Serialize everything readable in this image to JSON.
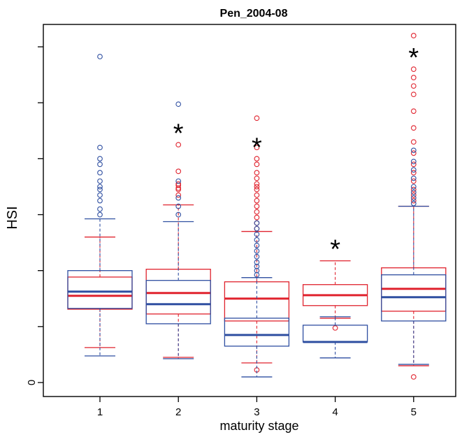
{
  "chart_data": {
    "type": "box",
    "title": "Pen_2004-08",
    "xlabel": "maturity stage",
    "ylabel": "HSI",
    "categories": [
      "1",
      "2",
      "3",
      "4",
      "5"
    ],
    "y_tick_labels": [
      "0"
    ],
    "ylim": [
      -0.5,
      12.8
    ],
    "y_ticks": [
      0,
      2,
      4,
      6,
      8,
      10,
      12
    ],
    "significance_marker": "*",
    "significance_marks": [
      false,
      true,
      true,
      true,
      true
    ],
    "colors": {
      "red": "#e0232e",
      "blue": "#2f4fa1"
    },
    "series": [
      {
        "color": "red",
        "boxes": [
          {
            "category": "1",
            "whisker_low": 1.25,
            "q1": 2.62,
            "median": 3.1,
            "q3": 3.77,
            "whisker_high": 5.2,
            "outliers": []
          },
          {
            "category": "2",
            "whisker_low": 0.9,
            "q1": 2.45,
            "median": 3.2,
            "q3": 4.05,
            "whisker_high": 6.35,
            "outliers": [
              6.7,
              6.9,
              6.95,
              7.05,
              7.1,
              7.55,
              8.5
            ]
          },
          {
            "category": "3",
            "whisker_low": 0.7,
            "q1": 2.2,
            "median": 3.0,
            "q3": 3.6,
            "whisker_high": 5.4,
            "outliers": [
              0.45,
              5.5,
              5.7,
              5.9,
              6.1,
              6.3,
              6.5,
              6.7,
              6.9,
              7.0,
              7.1,
              7.3,
              7.5,
              7.8,
              8.0,
              8.4,
              9.45
            ]
          },
          {
            "category": "4",
            "whisker_low": 2.3,
            "q1": 2.75,
            "median": 3.12,
            "q3": 3.5,
            "whisker_high": 4.35,
            "outliers": [
              1.95
            ]
          },
          {
            "category": "5",
            "whisker_low": 0.6,
            "q1": 2.55,
            "median": 3.35,
            "q3": 4.1,
            "whisker_high": 6.3,
            "outliers": [
              0.2,
              6.5,
              6.7,
              6.9,
              7.2,
              7.5,
              7.8,
              8.2,
              8.6,
              9.1,
              9.7,
              10.3,
              10.6,
              10.9,
              11.2,
              12.4
            ]
          }
        ]
      },
      {
        "color": "blue",
        "boxes": [
          {
            "category": "1",
            "whisker_low": 0.95,
            "q1": 2.65,
            "median": 3.25,
            "q3": 4.0,
            "whisker_high": 5.85,
            "outliers": [
              6.0,
              6.2,
              6.5,
              6.7,
              6.9,
              7.0,
              7.2,
              7.5,
              7.8,
              8.0,
              8.4,
              11.65
            ]
          },
          {
            "category": "2",
            "whisker_low": 0.85,
            "q1": 2.1,
            "median": 2.8,
            "q3": 3.65,
            "whisker_high": 5.75,
            "outliers": [
              6.0,
              6.3,
              6.6,
              7.2,
              9.95
            ]
          },
          {
            "category": "3",
            "whisker_low": 0.2,
            "q1": 1.3,
            "median": 1.7,
            "q3": 2.3,
            "whisker_high": 3.75,
            "outliers": [
              3.85,
              4.0,
              4.15,
              4.3,
              4.5,
              4.7,
              4.9,
              5.1,
              5.3,
              5.5,
              5.7
            ]
          },
          {
            "category": "4",
            "whisker_low": 0.88,
            "q1": 1.45,
            "median": 1.45,
            "q3": 2.05,
            "whisker_high": 2.35,
            "outliers": []
          },
          {
            "category": "5",
            "whisker_low": 0.65,
            "q1": 2.2,
            "median": 3.05,
            "q3": 3.85,
            "whisker_high": 6.3,
            "outliers": [
              6.4,
              6.6,
              6.8,
              7.0,
              7.3,
              7.6,
              7.9,
              8.3
            ]
          }
        ]
      }
    ]
  }
}
